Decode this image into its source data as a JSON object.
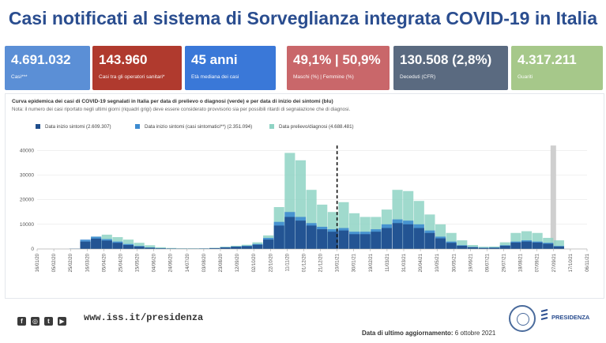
{
  "header": {
    "title": "Casi notificati al sistema di Sorveglianza integrata COVID-19 in Italia"
  },
  "cards": [
    {
      "value": "4.691.032",
      "label": "Casi***",
      "color": "#5b8fd6"
    },
    {
      "value": "143.960",
      "label": "Casi tra gli operatori sanitari*",
      "color": "#b03a2e"
    },
    {
      "value": "45 anni",
      "label": "Età mediana dei casi",
      "color": "#3a78d8"
    },
    {
      "value": "49,1% | 50,9%",
      "label": "Maschi (%) | Femmine (%)",
      "color": "#c9676a"
    },
    {
      "value": "130.508 (2,8%)",
      "label": "Deceduti (CFR)",
      "color": "#5a6a80"
    },
    {
      "value": "4.317.211",
      "label": "Guariti",
      "color": "#a6c88a"
    }
  ],
  "chart_data": {
    "type": "bar",
    "title": "Curva epidemica dei casi di COVID-19 segnalati in Italia per data di prelievo o diagnosi (verde) e per data di inizio dei sintomi (blu)",
    "note": "Nota: il numero dei casi riportato negli ultimi giorni (riquadri grigi) deve essere considerato provvisorio sia per possibili ritardi di segnalazione che di diagnosi.",
    "legend": [
      {
        "label": "Data inizio sintomi (2.609.307)",
        "color": "#1f4e8c"
      },
      {
        "label": "Data inizio sintomi (casi sintomatici**) (2.351.094)",
        "color": "#3d8bd0"
      },
      {
        "label": "Data prelievo/diagnosi (4.688.481)",
        "color": "#8fd3c4"
      }
    ],
    "ylim": [
      0,
      43000
    ],
    "y_ticks": [
      0,
      10000,
      20000,
      30000,
      40000
    ],
    "x_ticks": [
      "16/01/20",
      "05/02/20",
      "25/02/20",
      "16/03/20",
      "05/04/20",
      "25/04/20",
      "15/05/20",
      "04/06/20",
      "24/06/20",
      "14/07/20",
      "03/08/20",
      "23/08/20",
      "12/09/20",
      "02/10/20",
      "22/10/20",
      "11/11/20",
      "01/12/20",
      "21/12/20",
      "10/01/21",
      "30/01/21",
      "19/02/21",
      "11/03/21",
      "31/03/21",
      "20/04/21",
      "10/05/21",
      "30/05/21",
      "19/06/21",
      "09/07/21",
      "29/07/21",
      "18/08/21",
      "07/09/21",
      "27/09/21",
      "17/10/21",
      "06/11/21"
    ],
    "dashed_line_at": "10/01/21",
    "provisional_from": "27/09/21",
    "series": [
      {
        "name": "Data prelievo/diagnosi (4.688.481)",
        "values": [
          0,
          0,
          0,
          50,
          1000,
          5000,
          5800,
          4800,
          3800,
          2500,
          1500,
          700,
          400,
          250,
          250,
          250,
          450,
          900,
          1300,
          1700,
          2700,
          5500,
          17000,
          39000,
          36000,
          24000,
          18000,
          15000,
          19000,
          14500,
          13000,
          13000,
          16000,
          24000,
          23500,
          19500,
          14000,
          10000,
          6500,
          3500,
          1600,
          900,
          1000,
          2700,
          6500,
          7200,
          6500,
          4500,
          3500
        ]
      },
      {
        "name": "Data inizio sintomi (casi sintomatici**) (2.351.094)",
        "values": [
          0,
          0,
          0,
          100,
          3800,
          5000,
          4000,
          3000,
          2000,
          1200,
          600,
          300,
          200,
          150,
          150,
          200,
          350,
          700,
          1000,
          1300,
          2000,
          4500,
          11000,
          15000,
          13000,
          10500,
          9000,
          8000,
          8500,
          7000,
          7000,
          8000,
          10000,
          12000,
          11500,
          10000,
          7500,
          5000,
          3000,
          1500,
          800,
          500,
          600,
          1500,
          3000,
          3500,
          3000,
          2500,
          1200
        ]
      },
      {
        "name": "Data inizio sintomi (2.609.307)",
        "values": [
          0,
          0,
          0,
          80,
          3000,
          4200,
          3400,
          2500,
          1600,
          1000,
          500,
          250,
          150,
          120,
          120,
          150,
          300,
          600,
          900,
          1100,
          1700,
          3800,
          9500,
          13000,
          11500,
          9500,
          8000,
          7000,
          7500,
          6000,
          6000,
          7000,
          8500,
          10500,
          10000,
          8500,
          6500,
          4300,
          2500,
          1300,
          700,
          400,
          500,
          1300,
          2600,
          3000,
          2600,
          2100,
          1000
        ]
      }
    ]
  },
  "footer": {
    "site": "www.iss.it/presidenza",
    "update_label": "Data di ultimo aggiornamento: ",
    "update_date": "6 ottobre 2021",
    "presidenza": "PRESIDENZA",
    "social_icons": [
      "facebook-icon",
      "instagram-icon",
      "twitter-icon",
      "youtube-icon"
    ]
  }
}
